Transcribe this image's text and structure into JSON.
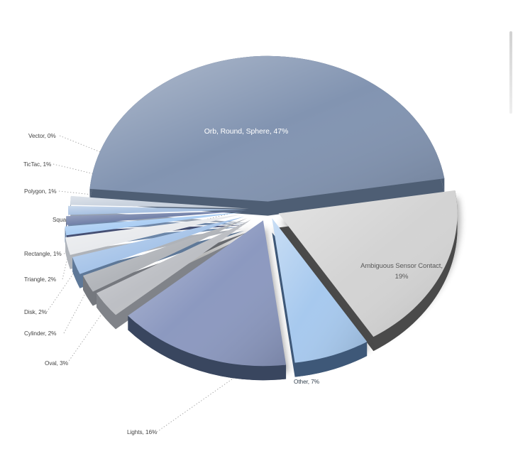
{
  "page": {
    "background_color": "#ffffff"
  },
  "chart_data": {
    "type": "pie",
    "style": "3d-exploded-pie",
    "title": "",
    "legend_position": "none",
    "label_format": "name, percent",
    "start_angle_compass_deg": 275,
    "series": [
      {
        "name": "Orb, Round, Sphere",
        "pct": 47,
        "label": "Orb, Round, Sphere, 47%",
        "color": "#8294B1",
        "side_color": "#4E5E74",
        "label_color": "#FFFFFF",
        "label_placement": "inside"
      },
      {
        "name": "Ambiguous Sensor Contact",
        "pct": 19,
        "label": "Ambiguous Sensor Contact, 19%",
        "label_lines": [
          "Ambiguous  Sensor Contact,",
          "19%"
        ],
        "color": "#D3D3D3",
        "side_color": "#4A4A4A",
        "label_color": "#595959",
        "label_placement": "inside"
      },
      {
        "name": "Other",
        "pct": 7,
        "label": "Other, 7%",
        "color": "#A7C9EE",
        "side_color": "#3E5878",
        "label_color": "#33404E",
        "label_placement": "inside"
      },
      {
        "name": "Lights",
        "pct": 16,
        "label": "Lights, 16%",
        "color": "#8C99C0",
        "side_color": "#39465F",
        "label_color": "#454545",
        "label_placement": "outside"
      },
      {
        "name": "Oval",
        "pct": 3,
        "label": "Oval, 3%",
        "color": "#BDBFC4",
        "side_color": "#808389",
        "label_color": "#454545",
        "label_placement": "outside"
      },
      {
        "name": "Cylinder",
        "pct": 2,
        "label": "Cylinder, 2%",
        "color": "#B2B5BA",
        "side_color": "#75787E",
        "label_color": "#454545",
        "label_placement": "outside"
      },
      {
        "name": "Disk",
        "pct": 2,
        "label": "Disk, 2%",
        "color": "#A8C5E9",
        "side_color": "#5E7898",
        "label_color": "#454545",
        "label_placement": "outside"
      },
      {
        "name": "Triangle",
        "pct": 2,
        "label": "Triangle, 2%",
        "color": "#E8EAED",
        "side_color": "#AFB3B9",
        "label_color": "#454545",
        "label_placement": "outside"
      },
      {
        "name": "Rectangle",
        "pct": 1,
        "label": "Rectangle, 1%",
        "color": "#ABCEF4",
        "side_color": "#6B86A8",
        "label_color": "#454545",
        "label_placement": "outside"
      },
      {
        "name": "Square",
        "pct": 1,
        "label": "Square, 1%",
        "color": "#7281A9",
        "side_color": "#454F73",
        "label_color": "#454545",
        "label_placement": "outside"
      },
      {
        "name": "Polygon",
        "pct": 1,
        "label": "Polygon, 1%",
        "color": "#A9C2E2",
        "side_color": "#6F87A8",
        "label_color": "#454545",
        "label_placement": "outside"
      },
      {
        "name": "TicTac",
        "pct": 1,
        "label": "TicTac, 1%",
        "color": "#C9D2DE",
        "side_color": "#97A2B2",
        "label_color": "#454545",
        "label_placement": "outside"
      },
      {
        "name": "Vector",
        "pct": 0,
        "label": "Vector, 0%",
        "color": "#D0D7E0",
        "side_color": "#9AA5B5",
        "label_color": "#454545",
        "label_placement": "outside"
      }
    ],
    "outside_labels_top_to_bottom": [
      "Vector, 0%",
      "TicTac, 1%",
      "Polygon, 1%",
      "Square, 1%",
      "Rectangle, 1%",
      "Triangle, 2%",
      "Disk, 2%",
      "Cylinder, 2%",
      "Oval, 3%",
      "Lights, 16%"
    ],
    "leader_line_color": "#A0A0A0",
    "grid": "off"
  },
  "scrollbar": {
    "present": true,
    "orientation": "vertical"
  }
}
